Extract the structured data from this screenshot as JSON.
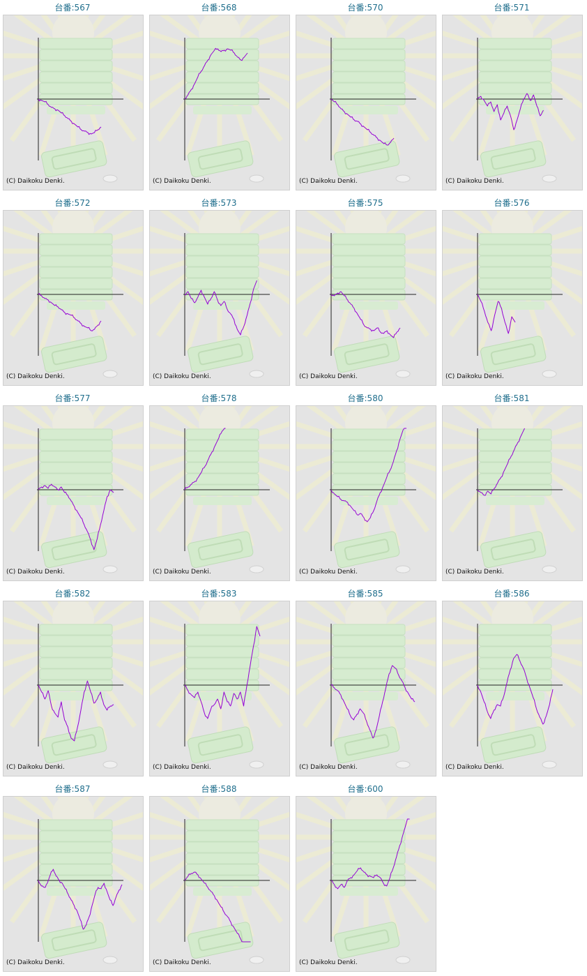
{
  "machine_prefix": "台番:",
  "copyright": "(C) Daikoku Denki.",
  "line_color": "#9400d3",
  "machines": [
    {
      "number": "567",
      "trend": [
        0,
        -2,
        -4,
        -8,
        -12,
        -14,
        -16,
        -20,
        -24,
        -28,
        -32,
        -36,
        -40,
        -44,
        -46,
        -48,
        -50,
        -48,
        -44,
        -40
      ]
    },
    {
      "number": "568",
      "trend": [
        0,
        6,
        14,
        22,
        32,
        40,
        48,
        56,
        64,
        70,
        72,
        68,
        70,
        72,
        70,
        66,
        60,
        56,
        60,
        66
      ]
    },
    {
      "number": "570",
      "trend": [
        0,
        -4,
        -8,
        -14,
        -18,
        -22,
        -26,
        -30,
        -32,
        -36,
        -40,
        -44,
        -48,
        -52,
        -56,
        -60,
        -64,
        -66,
        -62,
        -56
      ]
    },
    {
      "number": "571",
      "trend": [
        0,
        4,
        -2,
        -10,
        -4,
        -18,
        -8,
        -30,
        -20,
        -10,
        -24,
        -44,
        -30,
        -14,
        0,
        8,
        -2,
        6,
        -10,
        -24,
        -16
      ]
    },
    {
      "number": "572",
      "trend": [
        0,
        -2,
        -6,
        -8,
        -12,
        -16,
        -18,
        -22,
        -26,
        -28,
        -30,
        -34,
        -38,
        -42,
        -46,
        -48,
        -52,
        -50,
        -44,
        -38
      ]
    },
    {
      "number": "573",
      "trend": [
        0,
        4,
        -6,
        -12,
        -4,
        6,
        -4,
        -14,
        -6,
        4,
        -8,
        -16,
        -10,
        -22,
        -28,
        -36,
        -50,
        -58,
        -46,
        -30,
        -12,
        8,
        20
      ]
    },
    {
      "number": "575",
      "trend": [
        0,
        -2,
        2,
        4,
        -2,
        -8,
        -14,
        -20,
        -28,
        -36,
        -44,
        -48,
        -50,
        -52,
        -48,
        -54,
        -56,
        -52,
        -58,
        -62,
        -54,
        -48
      ]
    },
    {
      "number": "576",
      "trend": [
        0,
        -10,
        -24,
        -40,
        -52,
        -30,
        -10,
        -20,
        -40,
        -56,
        -32,
        -40
      ]
    },
    {
      "number": "577",
      "trend": [
        0,
        4,
        6,
        2,
        8,
        4,
        0,
        4,
        -4,
        -8,
        -16,
        -24,
        -32,
        -40,
        -50,
        -60,
        -72,
        -86,
        -70,
        -50,
        -30,
        -10,
        0,
        -4
      ]
    },
    {
      "number": "578",
      "trend": [
        0,
        4,
        8,
        12,
        18,
        26,
        34,
        44,
        54,
        64,
        74,
        84,
        92
      ]
    },
    {
      "number": "580",
      "trend": [
        0,
        -6,
        -10,
        -14,
        -16,
        -18,
        -24,
        -30,
        -36,
        -34,
        -40,
        -46,
        -40,
        -30,
        -16,
        -4,
        6,
        18,
        28,
        40,
        56,
        72,
        86,
        90
      ]
    },
    {
      "number": "581",
      "trend": [
        0,
        -4,
        -8,
        -2,
        -6,
        2,
        10,
        18,
        28,
        38,
        48,
        58,
        68,
        78,
        88
      ]
    },
    {
      "number": "582",
      "trend": [
        0,
        -10,
        -20,
        -8,
        -30,
        -40,
        -46,
        -24,
        -50,
        -60,
        -76,
        -80,
        -60,
        -36,
        -10,
        6,
        -10,
        -26,
        -20,
        -10,
        -28,
        -36,
        -30,
        -28
      ]
    },
    {
      "number": "583",
      "trend": [
        0,
        -8,
        -14,
        -18,
        -10,
        -24,
        -40,
        -48,
        -34,
        -28,
        -20,
        -34,
        -10,
        -24,
        -30,
        -12,
        -20,
        -10,
        -30,
        0,
        28,
        56,
        84,
        70
      ]
    },
    {
      "number": "585",
      "trend": [
        0,
        -4,
        -8,
        -14,
        -24,
        -34,
        -44,
        -50,
        -42,
        -34,
        -40,
        -52,
        -64,
        -76,
        -64,
        -44,
        -24,
        -4,
        16,
        28,
        24,
        14,
        6,
        -4,
        -12,
        -20,
        -24
      ]
    },
    {
      "number": "586",
      "trend": [
        0,
        -10,
        -24,
        -38,
        -48,
        -36,
        -28,
        -30,
        -16,
        4,
        22,
        38,
        44,
        34,
        24,
        10,
        -4,
        -18,
        -34,
        -46,
        -56,
        -44,
        -28,
        -6
      ]
    },
    {
      "number": "587",
      "trend": [
        0,
        -8,
        -10,
        -4,
        8,
        16,
        6,
        0,
        -4,
        -12,
        -20,
        -28,
        -36,
        -44,
        -56,
        -70,
        -64,
        -52,
        -36,
        -20,
        -10,
        -12,
        -4,
        -16,
        -28,
        -36,
        -24,
        -14,
        -6
      ]
    },
    {
      "number": "588",
      "trend": [
        0,
        6,
        10,
        12,
        8,
        2,
        -4,
        -10,
        -16,
        -22,
        -30,
        -38,
        -46,
        -52,
        -60,
        -68,
        -76,
        -84,
        -92,
        -98,
        -96
      ]
    },
    {
      "number": "600",
      "trend": [
        0,
        -6,
        -12,
        -6,
        -10,
        0,
        4,
        8,
        14,
        18,
        12,
        8,
        6,
        4,
        8,
        4,
        -4,
        -8,
        4,
        18,
        34,
        50,
        66,
        82,
        98
      ]
    }
  ]
}
